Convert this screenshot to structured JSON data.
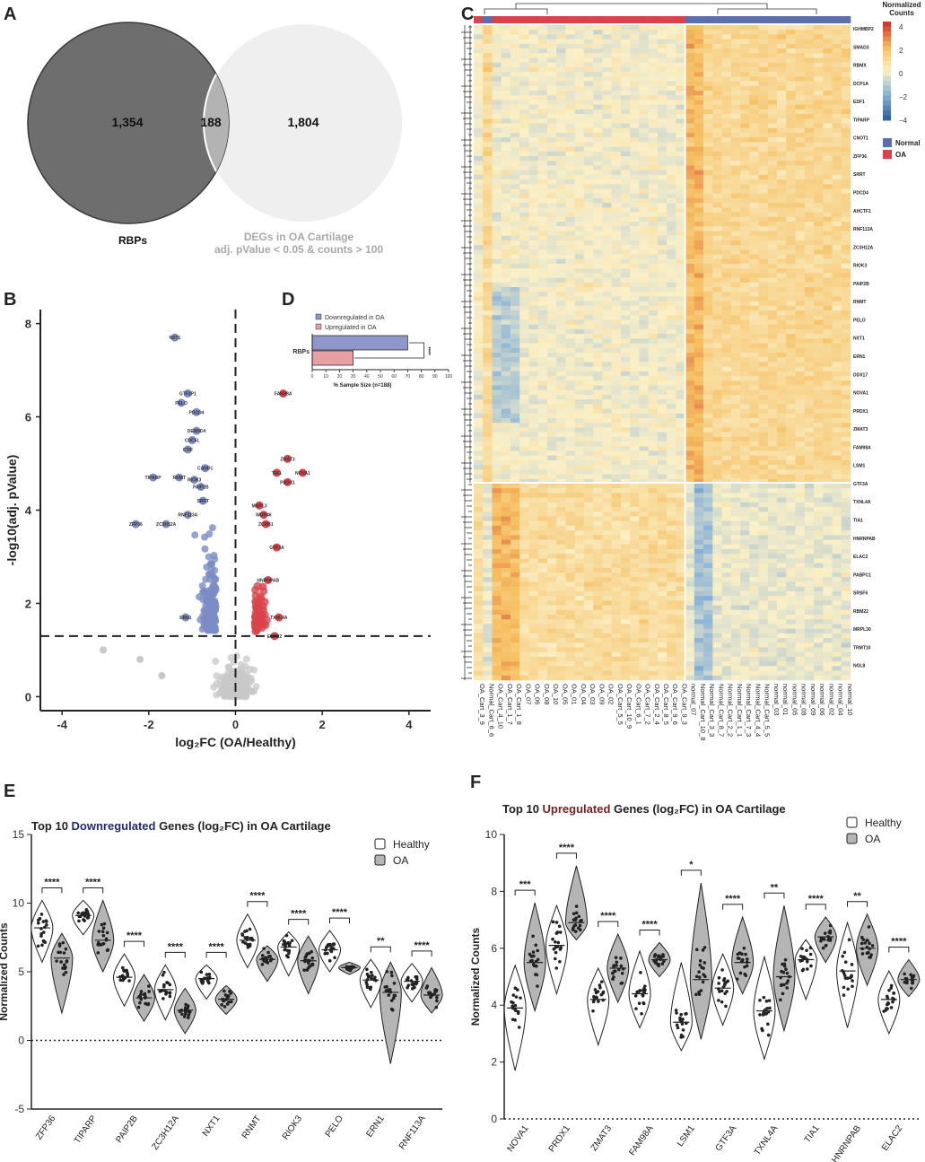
{
  "panels": {
    "A": "A",
    "B": "B",
    "C": "C",
    "D": "D",
    "E": "E",
    "F": "F"
  },
  "venn": {
    "left_count": "1,354",
    "overlap_count": "188",
    "right_count": "1,804",
    "left_label": "RBPs",
    "right_label_1": "DEGs in OA Cartilage",
    "right_label_2": "adj. pValue < 0.05 & counts > 100",
    "left_color": "#6e6e6e",
    "right_color": "#efefef",
    "overlap_color": "#b3b3b3"
  },
  "chart_data": [
    {
      "type": "scatter",
      "id": "volcano",
      "xlabel": "log₂FC (OA/Healthy)",
      "ylabel": "-log10(adj. pValue)",
      "xlim": [
        -4.5,
        4.5
      ],
      "ylim": [
        -0.3,
        8.3
      ],
      "xticks": [
        "-4",
        "-2",
        "0",
        "2",
        "4"
      ],
      "yticks": [
        "0",
        "2",
        "4",
        "6",
        "8"
      ],
      "threshold_y": 1.3,
      "colors": {
        "down": "#7b8cc4",
        "up": "#d9434b",
        "ns": "#c8c8c8"
      },
      "labeled_points": [
        {
          "gene": "NXT1",
          "x": -1.4,
          "y": 7.7,
          "dir": "down"
        },
        {
          "gene": "GTF3P1",
          "x": -1.1,
          "y": 6.5,
          "dir": "down"
        },
        {
          "gene": "PELO",
          "x": -1.25,
          "y": 6.3,
          "dir": "down"
        },
        {
          "gene": "PDCD4",
          "x": -0.9,
          "y": 6.1,
          "dir": "down"
        },
        {
          "gene": "DENND4",
          "x": -0.9,
          "y": 5.7,
          "dir": "down"
        },
        {
          "gene": "CDC5L",
          "x": -1.0,
          "y": 5.5,
          "dir": "down"
        },
        {
          "gene": "CTIF",
          "x": -1.1,
          "y": 5.3,
          "dir": "down"
        },
        {
          "gene": "CAND1",
          "x": -0.7,
          "y": 4.9,
          "dir": "down"
        },
        {
          "gene": "TIPARP",
          "x": -1.9,
          "y": 4.7,
          "dir": "down"
        },
        {
          "gene": "RNMT",
          "x": -1.3,
          "y": 4.7,
          "dir": "down"
        },
        {
          "gene": "RIOK3",
          "x": -0.95,
          "y": 4.65,
          "dir": "down"
        },
        {
          "gene": "PAIP2B",
          "x": -0.8,
          "y": 4.5,
          "dir": "down"
        },
        {
          "gene": "SRRT",
          "x": -0.75,
          "y": 4.2,
          "dir": "down"
        },
        {
          "gene": "RNF113A",
          "x": -1.1,
          "y": 3.9,
          "dir": "down"
        },
        {
          "gene": "ZFP36",
          "x": -2.3,
          "y": 3.7,
          "dir": "down"
        },
        {
          "gene": "ZC3H12A",
          "x": -1.6,
          "y": 3.7,
          "dir": "down"
        },
        {
          "gene": "ERN1",
          "x": -1.15,
          "y": 1.7,
          "dir": "down"
        },
        {
          "gene": "FAM98A",
          "x": 1.1,
          "y": 6.5,
          "dir": "up"
        },
        {
          "gene": "ZMAT3",
          "x": 1.2,
          "y": 5.1,
          "dir": "up"
        },
        {
          "gene": "TIA1",
          "x": 0.95,
          "y": 4.8,
          "dir": "up"
        },
        {
          "gene": "NOVA1",
          "x": 1.55,
          "y": 4.8,
          "dir": "up"
        },
        {
          "gene": "PRDX1",
          "x": 1.2,
          "y": 4.6,
          "dir": "up"
        },
        {
          "gene": "MRPL3",
          "x": 0.55,
          "y": 4.1,
          "dir": "up"
        },
        {
          "gene": "WDR46",
          "x": 0.65,
          "y": 3.9,
          "dir": "up"
        },
        {
          "gene": "ZCRB1",
          "x": 0.7,
          "y": 3.7,
          "dir": "up"
        },
        {
          "gene": "GTF3A",
          "x": 0.95,
          "y": 3.2,
          "dir": "up"
        },
        {
          "gene": "HNRNPAB",
          "x": 0.75,
          "y": 2.5,
          "dir": "up"
        },
        {
          "gene": "TXNL4A",
          "x": 1.0,
          "y": 1.7,
          "dir": "up"
        },
        {
          "gene": "ELAC2",
          "x": 0.9,
          "y": 1.3,
          "dir": "up"
        }
      ]
    },
    {
      "type": "bar",
      "id": "percent_bar",
      "title": "",
      "categories": [
        "RBPs"
      ],
      "series": [
        {
          "name": "Downregulated in OA",
          "values": [
            70
          ],
          "color": "#8e96cc"
        },
        {
          "name": "Upregulated in OA",
          "values": [
            30
          ],
          "color": "#e8a0a3"
        }
      ],
      "xlabel": "% Sample Size (n=188)",
      "xlim": [
        0,
        100
      ],
      "xticks": [
        "0",
        "10",
        "20",
        "30",
        "40",
        "50",
        "60",
        "70",
        "80",
        "90",
        "100"
      ],
      "significance": "****"
    },
    {
      "type": "heatmap",
      "id": "heatmap",
      "legend_title_1": "Normalized",
      "legend_title_2": "Counts",
      "scale_ticks": [
        "4",
        "2",
        "0",
        "−2",
        "−4"
      ],
      "group_legend": [
        {
          "name": "Normal",
          "color": "#5b6fae"
        },
        {
          "name": "OA",
          "color": "#d9434b"
        }
      ],
      "columns": [
        "OA_Cart_3_9",
        "Normal_Cart_6_6",
        "OA_Cart_4_10",
        "OA_Cart_1_7",
        "OA_Cart_1_8",
        "OA_07",
        "OA_06",
        "OA_08",
        "OA_10",
        "OA_05",
        "OA_01",
        "OA_04",
        "OA_03",
        "OA_09",
        "OA_02",
        "OA_Cart_5_5",
        "OA_Cart_10_9",
        "OA_Cart_6_1",
        "OA_Cart_7_2",
        "OA_Cart_2_4",
        "OA_Cart_8_5",
        "OA_Cart_9_6",
        "OA_Cart_9_3",
        "normal_07",
        "Normal_Cart_10_8",
        "Normal_Cart_3_3",
        "Normal_Cart_8_7",
        "Normal_Cart_2_2",
        "Normal_Cart_1_1",
        "Normal_Cart_7_3",
        "Normal_Cart_4_4",
        "Normal_Cart_5_5",
        "normal_03",
        "normal_01",
        "normal_05",
        "normal_08",
        "normal_09",
        "normal_06",
        "normal_02",
        "normal_04",
        "normal_10"
      ],
      "column_groups": [
        "OA",
        "Normal",
        "OA",
        "OA",
        "OA",
        "OA",
        "OA",
        "OA",
        "OA",
        "OA",
        "OA",
        "OA",
        "OA",
        "OA",
        "OA",
        "OA",
        "OA",
        "OA",
        "OA",
        "OA",
        "OA",
        "OA",
        "OA",
        "Normal",
        "Normal",
        "Normal",
        "Normal",
        "Normal",
        "Normal",
        "Normal",
        "Normal",
        "Normal",
        "Normal",
        "Normal",
        "Normal",
        "Normal",
        "Normal",
        "Normal",
        "Normal",
        "Normal",
        "Normal"
      ],
      "row_labels_sample": [
        "IGHMBP2",
        "SMAD3",
        "RBMX",
        "DCP1A",
        "EDF1",
        "TIPARP",
        "CNOT1",
        "ZFP36",
        "SRRT",
        "PDCD4",
        "AHCTF1",
        "RNF113A",
        "ZC3H12A",
        "RIOK3",
        "PAIP2B",
        "RNMT",
        "PELO",
        "NXT1",
        "ERN1",
        "DDX17",
        "NOVA1",
        "PRDX1",
        "ZMAT3",
        "FAM98A",
        "LSM1",
        "GTF3A",
        "TXNL4A",
        "TIA1",
        "HNRNPAB",
        "ELAC2",
        "PABPC1",
        "SRSF6",
        "RBM22",
        "MRPL30",
        "TRMT10",
        "NOL8"
      ]
    },
    {
      "type": "violin",
      "id": "violin_down",
      "title_prefix": "Top 10 ",
      "title_highlight": "Downregulated",
      "title_suffix": " Genes (log₂FC) in OA Cartilage",
      "title_highlight_color": "#1f2a7a",
      "ylabel": "Normalized Counts",
      "ylim": [
        -5,
        15
      ],
      "yticks": [
        "-5",
        "0",
        "5",
        "10",
        "15"
      ],
      "legend": [
        "Healthy",
        "OA"
      ],
      "colors": {
        "Healthy": "#ffffff",
        "OA": "#b5b5b5"
      },
      "categories": [
        "ZFP36",
        "TIPARP",
        "PAIP2B",
        "ZC3H12A",
        "NXT1",
        "RNMT",
        "RIOK3",
        "PELO",
        "ERN1",
        "RNF113A"
      ],
      "series": [
        {
          "name": "Healthy",
          "medians": [
            8.2,
            9.1,
            4.6,
            3.7,
            4.5,
            7.3,
            6.8,
            6.6,
            4.4,
            4.3
          ],
          "mins": [
            5.7,
            7.7,
            2.5,
            1.5,
            3.0,
            5.3,
            4.7,
            5.0,
            2.4,
            2.8
          ],
          "maxs": [
            10.2,
            10.2,
            6.3,
            5.5,
            5.5,
            9.2,
            7.9,
            8.0,
            5.9,
            5.6
          ]
        },
        {
          "name": "OA",
          "medians": [
            6.0,
            7.3,
            3.1,
            2.2,
            3.0,
            5.9,
            5.8,
            5.3,
            3.5,
            3.3
          ],
          "mins": [
            2.0,
            5.0,
            1.4,
            0.5,
            1.9,
            4.3,
            3.4,
            4.8,
            -1.7,
            2.0
          ],
          "maxs": [
            7.8,
            10.2,
            4.8,
            3.8,
            4.0,
            6.9,
            7.6,
            5.7,
            5.7,
            5.3
          ]
        }
      ],
      "significance": [
        "****",
        "****",
        "****",
        "****",
        "****",
        "****",
        "****",
        "****",
        "**",
        "****"
      ]
    },
    {
      "type": "violin",
      "id": "violin_up",
      "title_prefix": "Top 10 ",
      "title_highlight": "Upregulated",
      "title_suffix": " Genes (log₂FC) in OA Cartilage",
      "title_highlight_color": "#7a1f22",
      "ylabel": "Normalized Counts",
      "ylim": [
        0,
        10
      ],
      "yticks": [
        "0",
        "2",
        "4",
        "6",
        "8",
        "10"
      ],
      "legend": [
        "Healthy",
        "OA"
      ],
      "colors": {
        "Healthy": "#ffffff",
        "OA": "#b5b5b5"
      },
      "categories": [
        "NOVA1",
        "PRDX1",
        "ZMAT3",
        "FAM98A",
        "LSM1",
        "GTF3A",
        "TXNL4A",
        "TIA1",
        "HNRNPAB",
        "ELAC2"
      ],
      "series": [
        {
          "name": "Healthy",
          "medians": [
            3.9,
            6.1,
            4.2,
            4.4,
            3.4,
            4.6,
            3.8,
            5.6,
            5.2,
            4.2
          ],
          "mins": [
            1.7,
            4.4,
            2.6,
            3.2,
            2.4,
            3.3,
            2.1,
            4.2,
            3.2,
            3.0
          ],
          "maxs": [
            5.4,
            7.5,
            5.3,
            5.9,
            5.5,
            5.8,
            5.7,
            6.3,
            6.9,
            5.2
          ]
        },
        {
          "name": "OA",
          "medians": [
            5.5,
            6.9,
            5.3,
            5.6,
            4.9,
            5.5,
            5.0,
            6.4,
            6.0,
            4.9
          ],
          "mins": [
            3.8,
            6.3,
            4.1,
            5.0,
            2.8,
            4.4,
            3.1,
            5.5,
            4.7,
            4.3
          ],
          "maxs": [
            7.6,
            8.9,
            6.5,
            6.2,
            8.3,
            7.1,
            7.5,
            7.1,
            7.2,
            5.6
          ]
        }
      ],
      "significance": [
        "***",
        "****",
        "****",
        "****",
        "*",
        "****",
        "**",
        "****",
        "**",
        "****"
      ]
    }
  ]
}
